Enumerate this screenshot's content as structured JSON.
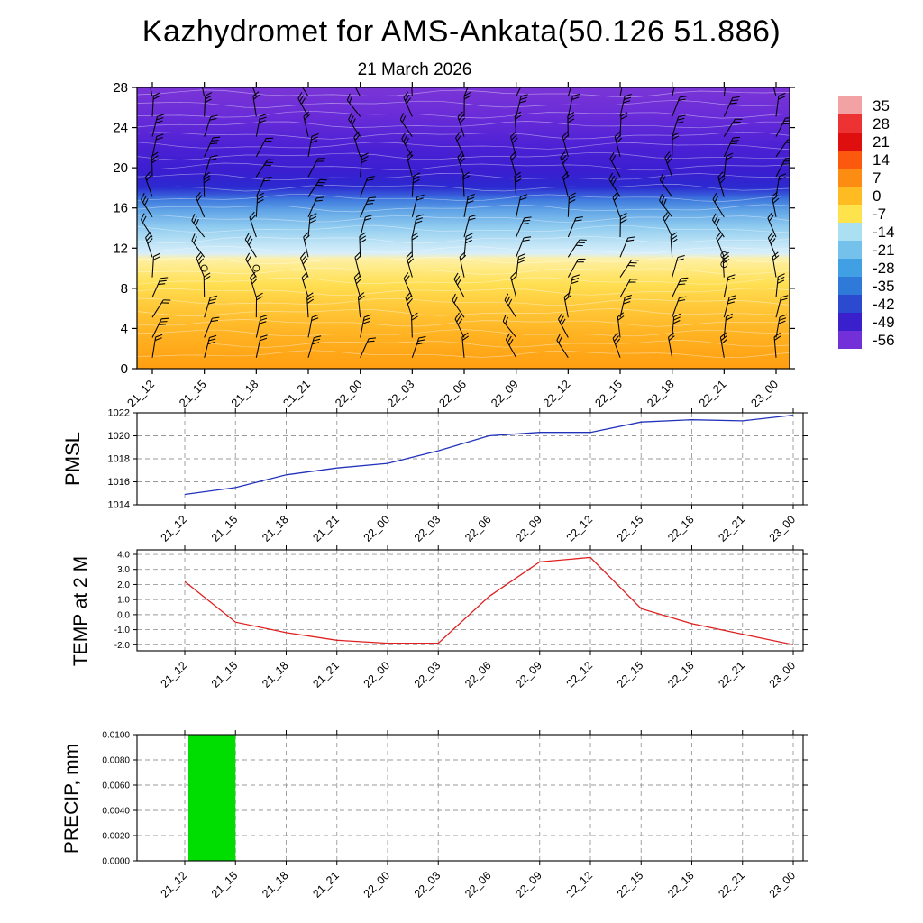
{
  "header": {
    "title": "Kazhydromet for AMS-Ankata(50.126 51.886)",
    "subtitle": "21 March 2026"
  },
  "time_labels": [
    "21_12",
    "21_15",
    "21_18",
    "21_21",
    "22_00",
    "22_03",
    "22_06",
    "22_09",
    "22_12",
    "22_15",
    "22_18",
    "22_21",
    "23_00"
  ],
  "chart_data": [
    {
      "type": "heatmap",
      "name": "cross-section",
      "title": "Temperature-height cross-section (shaded) with wind barbs",
      "xlabel": "",
      "ylabel": "",
      "ylim": [
        0,
        28
      ],
      "yticks": [
        0,
        4,
        8,
        12,
        16,
        20,
        24,
        28
      ],
      "ytick_labels": [
        "0",
        "4",
        "8",
        "12",
        "16",
        "20",
        "24",
        "28"
      ],
      "x_categories": "time_labels",
      "colorbar": {
        "values": [
          35,
          28,
          21,
          14,
          7,
          0,
          -7,
          -14,
          -21,
          -28,
          -35,
          -42,
          -49,
          -56
        ],
        "colors": [
          "#f2a2a2",
          "#ec3232",
          "#df0f0f",
          "#fb5a0e",
          "#fd8c12",
          "#ffbb22",
          "#ffe34d",
          "#abdff2",
          "#74c2ec",
          "#41a0e4",
          "#2f7ad8",
          "#2b4ad0",
          "#3a20cc",
          "#7330d8"
        ]
      },
      "gradient_stops": [
        [
          0.0,
          "#7a35d6"
        ],
        [
          0.1,
          "#6a2cd8"
        ],
        [
          0.22,
          "#4a20d4"
        ],
        [
          0.3,
          "#3a1ed0"
        ],
        [
          0.355,
          "#2b2ad0"
        ],
        [
          0.4,
          "#3f7ade"
        ],
        [
          0.44,
          "#62a6e6"
        ],
        [
          0.5,
          "#93cdf0"
        ],
        [
          0.555,
          "#bfe4f6"
        ],
        [
          0.59,
          "#d8eefa"
        ],
        [
          0.61,
          "#fdf0a6"
        ],
        [
          0.65,
          "#ffe97e"
        ],
        [
          0.7,
          "#ffdf52"
        ],
        [
          0.78,
          "#ffc93a"
        ],
        [
          0.87,
          "#ffb424"
        ],
        [
          1.0,
          "#ff9e10"
        ]
      ],
      "wind_barbs": true,
      "barb_grid": [
        13,
        14
      ],
      "calm_markers": [
        [
          1,
          10
        ],
        [
          2,
          10
        ],
        [
          11,
          10.4
        ],
        [
          11,
          11.3
        ]
      ]
    },
    {
      "type": "line",
      "name": "pmsl",
      "ylabel": "PMSL",
      "color": "#2233bb",
      "ylim": [
        1014,
        1022
      ],
      "yticks": [
        1014,
        1016,
        1018,
        1020,
        1022
      ],
      "ytick_labels": [
        "1014",
        "1016",
        "1018",
        "1020",
        "1022"
      ],
      "values": [
        1014.9,
        1015.5,
        1016.6,
        1017.2,
        1017.6,
        1018.7,
        1020.0,
        1020.3,
        1020.3,
        1021.2,
        1021.4,
        1021.3,
        1021.8
      ]
    },
    {
      "type": "line",
      "name": "temp-2m",
      "ylabel": "TEMP at 2 M",
      "color": "#de2020",
      "ylim": [
        -2.4,
        4.3
      ],
      "yticks": [
        -2,
        -1,
        0,
        1,
        2,
        3,
        4
      ],
      "ytick_labels": [
        "-2.0",
        "-1.0",
        "0.0",
        "1.0",
        "2.0",
        "3.0",
        "4.0"
      ],
      "values": [
        2.2,
        -0.5,
        -1.2,
        -1.7,
        -1.9,
        -1.9,
        1.2,
        3.5,
        3.8,
        0.4,
        -0.6,
        -1.3,
        -2.0
      ]
    },
    {
      "type": "bar",
      "name": "precip",
      "ylabel": "PRECIP, mm",
      "color": "#00dd00",
      "ylim": [
        0,
        0.01
      ],
      "yticks": [
        0,
        0.002,
        0.004,
        0.006,
        0.008,
        0.01
      ],
      "ytick_labels": [
        "0.0000",
        "0.0020",
        "0.0040",
        "0.0060",
        "0.0080",
        "0.0100"
      ],
      "values": [
        0,
        0.01,
        0,
        0,
        0,
        0,
        0,
        0,
        0,
        0,
        0,
        0,
        0
      ],
      "bar_note": "green bar spans the 21_12 to 21_15 interval at 0.0100"
    }
  ]
}
